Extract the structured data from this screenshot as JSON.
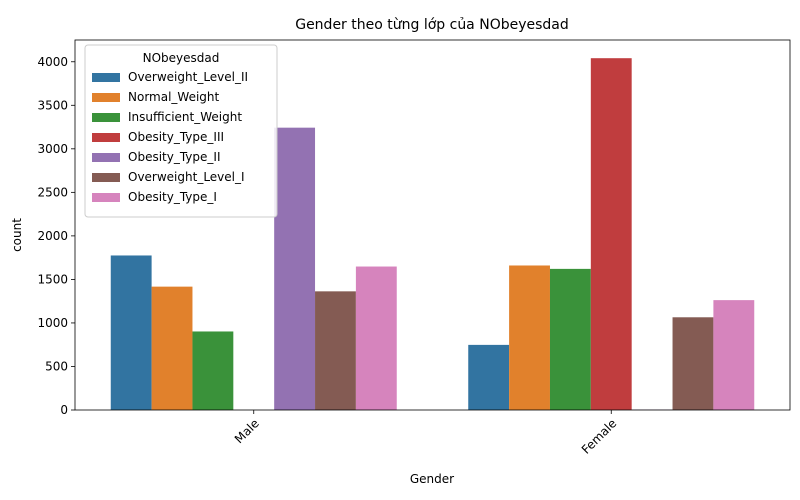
{
  "chart_data": {
    "type": "bar",
    "title": "Gender theo từng lớp của NObeyesdad",
    "xlabel": "Gender",
    "ylabel": "count",
    "categories": [
      "Male",
      "Female"
    ],
    "ylim": [
      0,
      4250
    ],
    "yticks": [
      "0",
      "500",
      "1000",
      "1500",
      "2000",
      "2500",
      "3000",
      "3500",
      "4000"
    ],
    "grid": false,
    "legend": {
      "title": "NObeyesdad",
      "placement": "upper-left"
    },
    "series": [
      {
        "name": "Overweight_Level_II",
        "color": "#3274a1",
        "values": [
          1775,
          748
        ]
      },
      {
        "name": "Normal_Weight",
        "color": "#e1812c",
        "values": [
          1417,
          1660
        ]
      },
      {
        "name": "Insufficient_Weight",
        "color": "#3a923a",
        "values": [
          902,
          1621
        ]
      },
      {
        "name": "Obesity_Type_III",
        "color": "#c03d3e",
        "values": [
          0,
          4041
        ]
      },
      {
        "name": "Obesity_Type_II",
        "color": "#9372b2",
        "values": [
          3243,
          4
        ]
      },
      {
        "name": "Overweight_Level_I",
        "color": "#845b53",
        "values": [
          1363,
          1065
        ]
      },
      {
        "name": "Obesity_Type_I",
        "color": "#d684bd",
        "values": [
          1648,
          1262
        ]
      }
    ]
  }
}
